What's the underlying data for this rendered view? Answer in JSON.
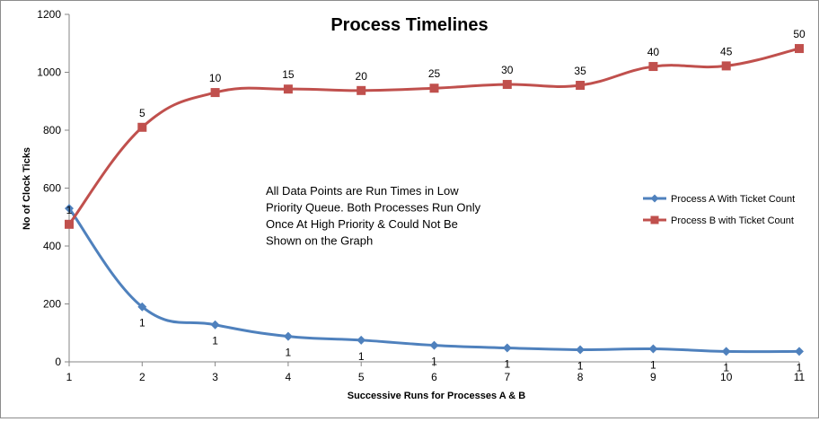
{
  "chart_data": {
    "type": "line",
    "title": "Process Timelines",
    "xlabel": "Successive Runs for Processes A & B",
    "ylabel": "No of Clock Ticks",
    "x": [
      1,
      2,
      3,
      4,
      5,
      6,
      7,
      8,
      9,
      10,
      11
    ],
    "ylim": [
      0,
      1200
    ],
    "yticks": [
      0,
      200,
      400,
      600,
      800,
      1000,
      1200
    ],
    "grid": false,
    "legend_position": "right",
    "annotation": [
      "All Data Points are Run Times in Low",
      "Priority Queue. Both Processes Run Only",
      "Once At High Priority & Could Not Be",
      "Shown on the Graph"
    ],
    "series": [
      {
        "name": "Process A With Ticket Count",
        "color": "#4f81bd",
        "marker": "diamond",
        "values": [
          530,
          190,
          128,
          88,
          75,
          57,
          48,
          42,
          45,
          36,
          36
        ],
        "labels": [
          "1",
          "1",
          "1",
          "1",
          "1",
          "1",
          "1",
          "1",
          "1",
          "1",
          "1"
        ]
      },
      {
        "name": "Process B with Ticket Count",
        "color": "#c0504d",
        "marker": "square",
        "values": [
          475,
          810,
          930,
          942,
          937,
          945,
          958,
          955,
          1020,
          1022,
          1082
        ],
        "labels": [
          "1",
          "5",
          "10",
          "15",
          "20",
          "25",
          "30",
          "35",
          "40",
          "45",
          "50"
        ]
      }
    ]
  }
}
